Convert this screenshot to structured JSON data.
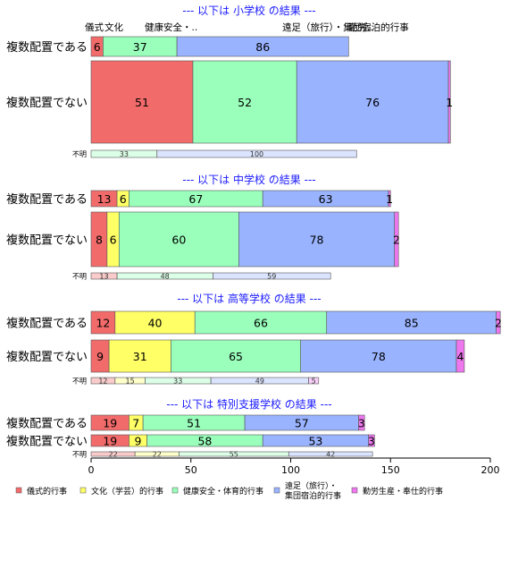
{
  "chart_data": {
    "type": "bar",
    "orientation": "horizontal",
    "stacked": true,
    "xlim": [
      0,
      200
    ],
    "x_ticks": [
      "0",
      "50",
      "100",
      "150",
      "200"
    ],
    "grid": false,
    "legend_position": "bottom",
    "series": [
      {
        "name": "儀式的行事",
        "color": "#f26b6b"
      },
      {
        "name": "文化（学芸）的行事",
        "color": "#ffff66"
      },
      {
        "name": "健康安全・体育的行事",
        "color": "#99ffbb"
      },
      {
        "name": "遠足（旅行）・\n集団宿泊的行事",
        "color": "#99b3ff"
      },
      {
        "name": "勤労生産・奉仕的行事",
        "color": "#ee77ee"
      }
    ],
    "top_labels": [
      "儀式",
      "文化",
      "健康安全・..",
      "遠足（旅行）・集団宿泊的行事",
      "勤労.."
    ],
    "groups": [
      {
        "title": "--- 以下は 小学校 の結果 ---",
        "categories": [
          "複数配置である",
          "複数配置でない"
        ],
        "values": [
          [
            6,
            0,
            37,
            86,
            0
          ],
          [
            51,
            0,
            52,
            76,
            1
          ]
        ],
        "label_values": [
          [
            "6",
            "",
            "37",
            "86",
            ""
          ],
          [
            "51",
            "",
            "52",
            "76",
            "1"
          ]
        ],
        "unknown_label": "不明",
        "unknown_values": [
          0,
          0,
          33,
          100,
          0
        ],
        "unknown_labels": [
          "",
          "",
          "33",
          "100",
          ""
        ]
      },
      {
        "title": "--- 以下は 中学校 の結果 ---",
        "categories": [
          "複数配置である",
          "複数配置でない"
        ],
        "values": [
          [
            13,
            6,
            67,
            63,
            1
          ],
          [
            8,
            6,
            60,
            78,
            2
          ]
        ],
        "label_values": [
          [
            "13",
            "6",
            "67",
            "63",
            "1"
          ],
          [
            "8",
            "6",
            "60",
            "78",
            "2"
          ]
        ],
        "unknown_label": "不明",
        "unknown_values": [
          13,
          0,
          48,
          59,
          0
        ],
        "unknown_labels": [
          "13",
          "",
          "48",
          "59",
          ""
        ]
      },
      {
        "title": "--- 以下は 高等学校 の結果 ---",
        "categories": [
          "複数配置である",
          "複数配置でない"
        ],
        "values": [
          [
            12,
            40,
            66,
            85,
            2
          ],
          [
            9,
            31,
            65,
            78,
            4
          ]
        ],
        "label_values": [
          [
            "12",
            "40",
            "66",
            "85",
            "2"
          ],
          [
            "9",
            "31",
            "65",
            "78",
            "4"
          ]
        ],
        "unknown_label": "不明",
        "unknown_values": [
          12,
          15,
          33,
          49,
          5
        ],
        "unknown_labels": [
          "12",
          "15",
          "33",
          "49",
          "5"
        ]
      },
      {
        "title": "--- 以下は 特別支援学校 の結果 ---",
        "categories": [
          "複数配置である",
          "複数配置でない"
        ],
        "values": [
          [
            19,
            7,
            51,
            57,
            3
          ],
          [
            19,
            9,
            58,
            53,
            3
          ]
        ],
        "label_values": [
          [
            "19",
            "7",
            "51",
            "57",
            "3"
          ],
          [
            "19",
            "9",
            "58",
            "53",
            "3"
          ]
        ],
        "unknown_label": "不明",
        "unknown_values": [
          22,
          22,
          55,
          42,
          0
        ],
        "unknown_labels": [
          "22",
          "22",
          "55",
          "42",
          ""
        ]
      }
    ]
  }
}
